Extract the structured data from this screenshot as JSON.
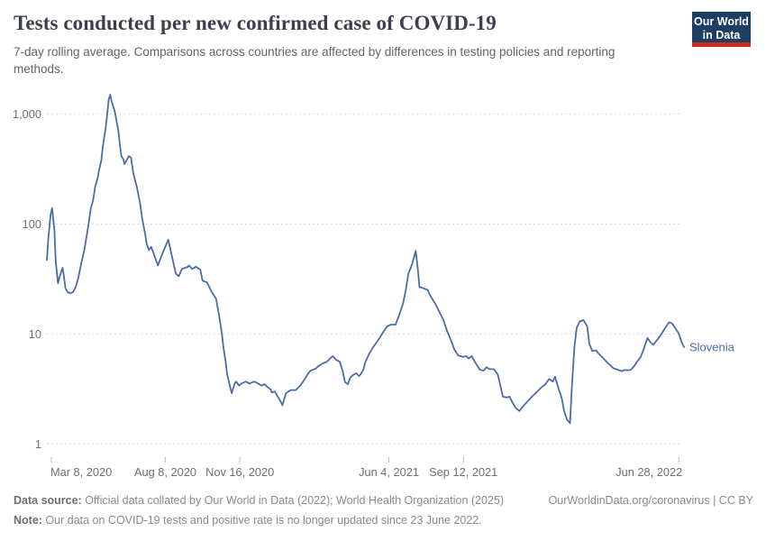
{
  "header": {
    "title": "Tests conducted per new confirmed case of COVID-19",
    "subtitle": "7-day rolling average. Comparisons across countries are affected by differences in testing policies and reporting methods.",
    "logo_line1": "Our World",
    "logo_line2": "in Data"
  },
  "footer": {
    "source_label": "Data source:",
    "source_text": " Official data collated by Our World in Data (2022); World Health Organization (2025)",
    "link_text": "OurWorldinData.org/coronavirus",
    "license_text": " | CC BY",
    "note_label": "Note:",
    "note_text": " Our data on COVID-19 tests and positive rate is no longer updated since 23 June 2022."
  },
  "colors": {
    "line": "#4a6da8",
    "series_label": "#4a6da8",
    "grid": "#dcdcdc",
    "axis_text": "#6f6f6f",
    "tick_mark": "#b8b8b8",
    "logo_bg": "#1d3d63",
    "logo_red": "#cc2a24"
  },
  "chart_data": {
    "type": "line",
    "title": "Tests conducted per new confirmed case of COVID-19",
    "subtitle": "7-day rolling average.",
    "y_scale": "log",
    "ylabel": "",
    "xlabel": "",
    "grid": "dashed-horizontal",
    "legend_position": "end-of-line-label",
    "y_ticks": [
      {
        "value": 1,
        "label": "1"
      },
      {
        "value": 10,
        "label": "10"
      },
      {
        "value": 100,
        "label": "100"
      },
      {
        "value": 1000,
        "label": "1,000"
      }
    ],
    "x_unit": "days since 2020-03-02",
    "xlim": [
      0,
      855
    ],
    "ylim_visible": [
      0.8,
      1700
    ],
    "x_ticks": [
      {
        "day": 6,
        "label": "Mar 8, 2020",
        "align": "start"
      },
      {
        "day": 159,
        "label": "Aug 8, 2020",
        "align": "middle"
      },
      {
        "day": 259,
        "label": "Nov 16, 2020",
        "align": "middle"
      },
      {
        "day": 459,
        "label": "Jun 4, 2021",
        "align": "middle"
      },
      {
        "day": 559,
        "label": "Sep 12, 2021",
        "align": "middle"
      },
      {
        "day": 848,
        "label": "Jun 28, 2022",
        "align": "end"
      }
    ],
    "series": [
      {
        "name": "Slovenia",
        "points": [
          [
            0,
            47
          ],
          [
            2,
            75
          ],
          [
            5,
            120
          ],
          [
            7,
            140
          ],
          [
            10,
            90
          ],
          [
            12,
            45
          ],
          [
            15,
            29
          ],
          [
            17,
            33
          ],
          [
            21,
            40
          ],
          [
            23,
            33
          ],
          [
            25,
            26
          ],
          [
            28,
            24
          ],
          [
            31,
            23.5
          ],
          [
            35,
            24
          ],
          [
            39,
            27
          ],
          [
            42,
            32
          ],
          [
            46,
            43
          ],
          [
            50,
            57
          ],
          [
            52,
            68
          ],
          [
            56,
            100
          ],
          [
            59,
            140
          ],
          [
            62,
            164
          ],
          [
            65,
            220
          ],
          [
            68,
            258
          ],
          [
            70,
            310
          ],
          [
            73,
            377
          ],
          [
            75,
            500
          ],
          [
            79,
            750
          ],
          [
            81,
            1000
          ],
          [
            83,
            1350
          ],
          [
            85,
            1500
          ],
          [
            87,
            1300
          ],
          [
            91,
            1070
          ],
          [
            93,
            900
          ],
          [
            96,
            700
          ],
          [
            98,
            530
          ],
          [
            100,
            414
          ],
          [
            103,
            383
          ],
          [
            104,
            350
          ],
          [
            106,
            370
          ],
          [
            110,
            414
          ],
          [
            113,
            400
          ],
          [
            116,
            290
          ],
          [
            121,
            213
          ],
          [
            125,
            155
          ],
          [
            128,
            112
          ],
          [
            132,
            80
          ],
          [
            134,
            66
          ],
          [
            137,
            58
          ],
          [
            140,
            62
          ],
          [
            143,
            55
          ],
          [
            149,
            42
          ],
          [
            155,
            54
          ],
          [
            163,
            72
          ],
          [
            169,
            47
          ],
          [
            173,
            35.5
          ],
          [
            177,
            33.5
          ],
          [
            181,
            39
          ],
          [
            188,
            40.5
          ],
          [
            191,
            42
          ],
          [
            195,
            39
          ],
          [
            200,
            41
          ],
          [
            206,
            38.5
          ],
          [
            209,
            30.5
          ],
          [
            215,
            29.5
          ],
          [
            221,
            24.3
          ],
          [
            227,
            21
          ],
          [
            231,
            15
          ],
          [
            235,
            10
          ],
          [
            237,
            7.5
          ],
          [
            240,
            5.5
          ],
          [
            242,
            4.3
          ],
          [
            246,
            3.3
          ],
          [
            248,
            2.9
          ],
          [
            252,
            3.55
          ],
          [
            254,
            3.7
          ],
          [
            258,
            3.4
          ],
          [
            261,
            3.55
          ],
          [
            267,
            3.7
          ],
          [
            272,
            3.55
          ],
          [
            278,
            3.7
          ],
          [
            282,
            3.6
          ],
          [
            288,
            3.4
          ],
          [
            292,
            3.5
          ],
          [
            296,
            3.3
          ],
          [
            300,
            3.15
          ],
          [
            302,
            2.95
          ],
          [
            306,
            3.0
          ],
          [
            310,
            2.7
          ],
          [
            315,
            2.35
          ],
          [
            316,
            2.25
          ],
          [
            321,
            2.9
          ],
          [
            324,
            3.0
          ],
          [
            328,
            3.1
          ],
          [
            334,
            3.1
          ],
          [
            340,
            3.4
          ],
          [
            345,
            3.8
          ],
          [
            351,
            4.4
          ],
          [
            354,
            4.65
          ],
          [
            361,
            4.85
          ],
          [
            364,
            5.1
          ],
          [
            370,
            5.4
          ],
          [
            376,
            5.6
          ],
          [
            381,
            6.1
          ],
          [
            384,
            6.3
          ],
          [
            388,
            5.85
          ],
          [
            393,
            5.6
          ],
          [
            397,
            4.6
          ],
          [
            400,
            3.65
          ],
          [
            404,
            3.5
          ],
          [
            407,
            4.0
          ],
          [
            411,
            4.25
          ],
          [
            415,
            4.4
          ],
          [
            419,
            4.15
          ],
          [
            421,
            4.3
          ],
          [
            425,
            4.8
          ],
          [
            427,
            5.5
          ],
          [
            433,
            6.7
          ],
          [
            439,
            7.8
          ],
          [
            445,
            8.9
          ],
          [
            451,
            10.3
          ],
          [
            457,
            11.8
          ],
          [
            462,
            12.2
          ],
          [
            468,
            12.2
          ],
          [
            473,
            15
          ],
          [
            478,
            19
          ],
          [
            482,
            26
          ],
          [
            485,
            35
          ],
          [
            490,
            43
          ],
          [
            495,
            57
          ],
          [
            498,
            38
          ],
          [
            500,
            26.6
          ],
          [
            502,
            26.6
          ],
          [
            511,
            25.2
          ],
          [
            515,
            22
          ],
          [
            521,
            19
          ],
          [
            526,
            16.3
          ],
          [
            532,
            13.5
          ],
          [
            537,
            10.7
          ],
          [
            542,
            8.9
          ],
          [
            547,
            7.2
          ],
          [
            552,
            6.4
          ],
          [
            558,
            6.2
          ],
          [
            563,
            6.3
          ],
          [
            566,
            6.0
          ],
          [
            570,
            6.3
          ],
          [
            575,
            5.5
          ],
          [
            581,
            4.75
          ],
          [
            586,
            4.65
          ],
          [
            590,
            5.0
          ],
          [
            594,
            4.8
          ],
          [
            600,
            4.8
          ],
          [
            605,
            4.3
          ],
          [
            609,
            3.3
          ],
          [
            612,
            2.7
          ],
          [
            617,
            2.65
          ],
          [
            621,
            2.7
          ],
          [
            624,
            2.44
          ],
          [
            629,
            2.14
          ],
          [
            634,
            2.0
          ],
          [
            639,
            2.2
          ],
          [
            645,
            2.44
          ],
          [
            651,
            2.7
          ],
          [
            657,
            2.95
          ],
          [
            663,
            3.25
          ],
          [
            669,
            3.5
          ],
          [
            674,
            3.9
          ],
          [
            679,
            3.7
          ],
          [
            682,
            4.1
          ],
          [
            686,
            3.3
          ],
          [
            691,
            2.6
          ],
          [
            694,
            2.0
          ],
          [
            698,
            1.67
          ],
          [
            702,
            1.55
          ],
          [
            705,
            3.8
          ],
          [
            708,
            7.6
          ],
          [
            711,
            11.4
          ],
          [
            715,
            13.0
          ],
          [
            720,
            13.4
          ],
          [
            725,
            11.8
          ],
          [
            728,
            8.1
          ],
          [
            732,
            7.0
          ],
          [
            737,
            7.1
          ],
          [
            740,
            6.7
          ],
          [
            745,
            6.2
          ],
          [
            751,
            5.6
          ],
          [
            756,
            5.2
          ],
          [
            761,
            4.85
          ],
          [
            766,
            4.75
          ],
          [
            771,
            4.6
          ],
          [
            775,
            4.7
          ],
          [
            783,
            4.7
          ],
          [
            788,
            5.1
          ],
          [
            792,
            5.6
          ],
          [
            797,
            6.2
          ],
          [
            801,
            7.3
          ],
          [
            806,
            9.2
          ],
          [
            810,
            8.4
          ],
          [
            814,
            8.0
          ],
          [
            818,
            8.7
          ],
          [
            824,
            9.8
          ],
          [
            829,
            11.2
          ],
          [
            835,
            12.8
          ],
          [
            839,
            12.5
          ],
          [
            843,
            11.4
          ],
          [
            848,
            10.1
          ],
          [
            852,
            8.4
          ],
          [
            855,
            7.6
          ]
        ]
      }
    ]
  }
}
